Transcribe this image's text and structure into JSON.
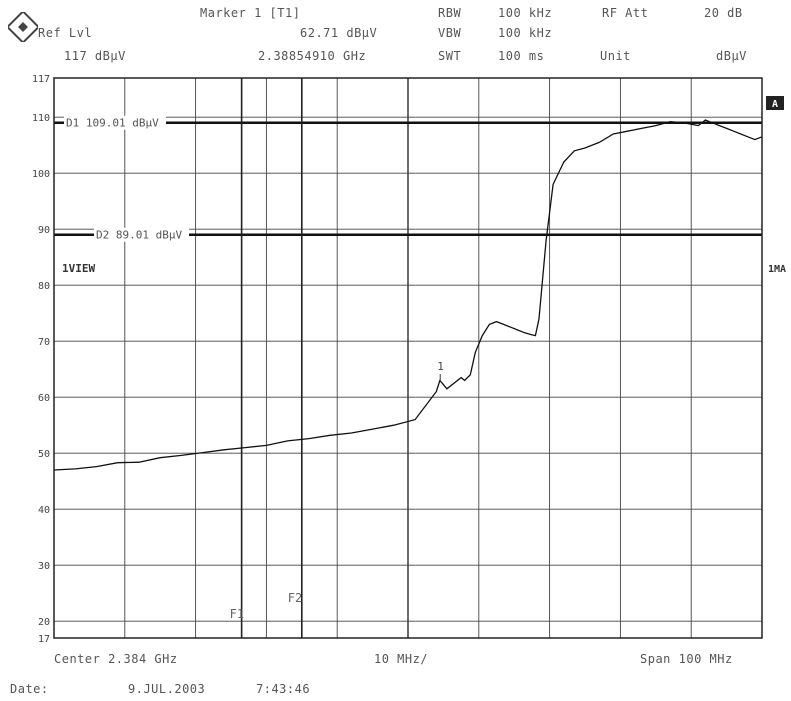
{
  "header": {
    "marker_label": "Marker 1 [T1]",
    "ref_lvl_label": "Ref Lvl",
    "ref_lvl_value": "117 dBµV",
    "marker_level": "62.71 dBµV",
    "marker_freq": "2.38854910 GHz",
    "rbw_label": "RBW",
    "rbw_value": "100 kHz",
    "rf_att_label": "RF Att",
    "rf_att_value": "20 dB",
    "vbw_label": "VBW",
    "vbw_value": "100 kHz",
    "swt_label": "SWT",
    "swt_value": "100 ms",
    "unit_label": "Unit",
    "unit_value": "dBµV"
  },
  "footer": {
    "center": "Center 2.384 GHz",
    "div": "10 MHz/",
    "span": "Span 100 MHz",
    "date_label": "Date:",
    "date_value": "9.JUL.2003",
    "time_value": "7:43:46"
  },
  "annotations": {
    "d1": "D1 109.01 dBµV",
    "d2": "D2 89.01 dBµV",
    "view": "1VIEW",
    "a_badge": "A",
    "right_tag": "1MA",
    "f1": "F1",
    "f2": "F2",
    "marker_num": "1"
  },
  "colors": {
    "trace": "#111111",
    "grid": "#444444",
    "threshold": "#111111",
    "background": "#ffffff"
  },
  "chart_data": {
    "type": "line",
    "title": "",
    "xlabel": "",
    "ylabel": "",
    "xlim": [
      2334,
      2434
    ],
    "ylim": [
      17,
      117
    ],
    "x_divisions": 10,
    "y_ticks": [
      17,
      20,
      30,
      40,
      50,
      60,
      70,
      80,
      90,
      100,
      110,
      117
    ],
    "grid": true,
    "display_lines": [
      {
        "name": "D1",
        "value": 109.01
      },
      {
        "name": "D2",
        "value": 89.01
      }
    ],
    "frequency_lines": [
      {
        "name": "F1",
        "x": 2360.5
      },
      {
        "name": "F2",
        "x": 2369.0
      }
    ],
    "marker": {
      "label": "1",
      "x": 2388.5491,
      "y": 62.71
    },
    "series": [
      {
        "x": [
          2334,
          2337,
          2340,
          2343,
          2346,
          2349,
          2352,
          2355,
          2358,
          2361,
          2364,
          2367,
          2370,
          2373,
          2376,
          2379,
          2382,
          2385,
          2388,
          2388.5,
          2389.5,
          2391.5,
          2392,
          2392.8,
          2393.5,
          2394.5,
          2395.5,
          2396.5,
          2397.5,
          2398.5,
          2399.5,
          2400.5,
          2401.3,
          2402,
          2402.5,
          2403.5,
          2404.5,
          2406,
          2407.5,
          2409,
          2411,
          2413,
          2415,
          2417,
          2419,
          2421,
          2423,
          2425,
          2426,
          2427,
          2428,
          2429,
          2430,
          2431,
          2432,
          2433,
          2434
        ],
        "values": [
          47.0,
          47.2,
          47.6,
          48.3,
          48.4,
          49.2,
          49.6,
          50.1,
          50.6,
          51.0,
          51.4,
          52.2,
          52.6,
          53.2,
          53.6,
          54.3,
          55.0,
          56.0,
          61.0,
          63.0,
          61.5,
          63.5,
          63.0,
          64.0,
          68.0,
          71.0,
          73.0,
          73.5,
          73.0,
          72.5,
          72.0,
          71.5,
          71.2,
          71.0,
          74.0,
          88.0,
          98.0,
          102.0,
          104.0,
          104.5,
          105.5,
          107.0,
          107.5,
          108.0,
          108.5,
          109.2,
          109.0,
          108.5,
          109.5,
          109.0,
          108.5,
          108.0,
          107.5,
          107.0,
          106.5,
          106.0,
          106.5
        ]
      }
    ]
  }
}
